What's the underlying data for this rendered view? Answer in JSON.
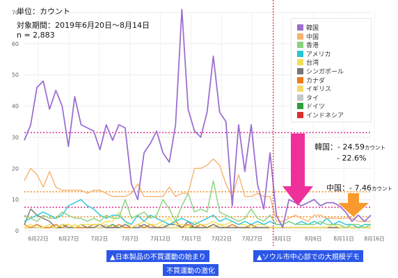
{
  "header": {
    "unit": "単位：カウント",
    "period": "対象期間：2019年6月20日〜8月14日",
    "n": "n = 2,883"
  },
  "colors": {
    "korea": "#9b6fd0",
    "china": "#f7b26e",
    "hongkong": "#86d47a",
    "usa": "#27c4d6",
    "taiwan": "#f2e05a",
    "singapore": "#777777",
    "canada": "#f07a1a",
    "uk": "#f4d96b",
    "thailand": "#c7c7c7",
    "germany": "#2e9e3a",
    "indonesia": "#d9302c",
    "ref_line": "#e0308f",
    "ref_line2": "#f0902a",
    "event_bg": "#2b57e8",
    "arrow_pink": "#f0309a",
    "arrow_orange": "#f99a2c",
    "divider": "#e02020"
  },
  "chart_data": {
    "type": "line",
    "x_labels": [
      "6月22日",
      "6月27日",
      "7月2日",
      "7月7日",
      "7月12日",
      "7月17日",
      "7月22日",
      "7月27日",
      "8月1日",
      "8月6日",
      "8月11日",
      "8月16日"
    ],
    "x_start": "6月20日",
    "ylim": [
      0,
      70
    ],
    "y_ticks": [
      0,
      10,
      20,
      30,
      40,
      50,
      60,
      70
    ],
    "series": [
      {
        "name": "韓国",
        "color_key": "korea",
        "values": [
          29,
          34,
          46,
          48,
          39,
          45,
          40,
          27,
          43,
          34,
          33,
          32,
          26,
          34,
          29,
          34,
          33,
          15,
          10,
          25,
          28,
          32,
          25,
          22,
          34,
          71,
          39,
          32,
          30,
          38,
          56,
          38,
          35,
          8,
          34,
          19,
          34,
          15,
          7,
          25,
          5,
          1,
          10,
          9,
          8,
          9,
          10,
          8,
          9,
          9,
          8,
          6,
          3,
          5,
          3,
          5
        ]
      },
      {
        "name": "中国",
        "color_key": "china",
        "values": [
          16,
          20,
          18,
          14,
          19,
          14,
          13,
          13,
          13,
          13,
          12,
          13,
          13,
          12,
          11,
          11,
          11,
          12,
          15,
          11,
          11,
          11,
          11,
          14,
          11,
          12,
          12,
          20,
          20,
          21,
          23,
          21,
          15,
          11,
          18,
          11,
          11,
          12,
          11,
          11,
          3,
          3,
          4,
          5,
          4,
          3,
          5,
          5,
          4,
          4,
          4,
          4,
          4,
          3,
          3,
          3
        ]
      },
      {
        "name": "香港",
        "color_key": "hongkong",
        "values": [
          5,
          4,
          3,
          5,
          4,
          4,
          6,
          5,
          4,
          4,
          3,
          4,
          3,
          5,
          4,
          4,
          10,
          4,
          5,
          6,
          4,
          5,
          10,
          7,
          3,
          8,
          12,
          6,
          7,
          6,
          16,
          6,
          5,
          4,
          3,
          4,
          7,
          4,
          3,
          5,
          2,
          2,
          3,
          2,
          2,
          2,
          2,
          3,
          2,
          2,
          2,
          1,
          2,
          2,
          1,
          2
        ]
      },
      {
        "name": "アメリカ",
        "color_key": "usa",
        "values": [
          3,
          4,
          5,
          6,
          5,
          4,
          5,
          8,
          9,
          10,
          8,
          7,
          5,
          4,
          5,
          5,
          3,
          2,
          5,
          3,
          5,
          4,
          3,
          2,
          3,
          4,
          3,
          2,
          3,
          4,
          5,
          3,
          4,
          3,
          2,
          3,
          2,
          3,
          2,
          3,
          2,
          2,
          3,
          2,
          3,
          2,
          3,
          2,
          4,
          2,
          3,
          2,
          2,
          1,
          2,
          2
        ]
      },
      {
        "name": "台湾",
        "color_key": "taiwan",
        "values": [
          1,
          2,
          1,
          1,
          2,
          1,
          2,
          2,
          1,
          2,
          2,
          2,
          2,
          3,
          3,
          6,
          3,
          1,
          2,
          3,
          2,
          2,
          3,
          4,
          2,
          2,
          1,
          3,
          2,
          2,
          3,
          2,
          2,
          3,
          2,
          2,
          1,
          2,
          2,
          1,
          1,
          1,
          1,
          1,
          1,
          1,
          1,
          1,
          1,
          2,
          1,
          1,
          1,
          1,
          1,
          1
        ]
      },
      {
        "name": "シンガポール",
        "color_key": "singapore",
        "values": [
          2,
          7,
          5,
          4,
          3,
          1,
          2,
          1,
          1,
          2,
          1,
          1,
          2,
          1,
          1,
          1,
          2,
          1,
          1,
          2,
          1,
          1,
          1,
          2,
          2,
          1,
          3,
          1,
          1,
          1,
          2,
          1,
          1,
          1,
          1,
          1,
          1,
          1,
          1,
          1,
          1,
          1,
          1,
          1,
          1,
          1,
          1,
          1,
          1,
          1,
          1,
          1,
          1,
          1,
          1,
          1
        ]
      },
      {
        "name": "カナダ",
        "color_key": "canada",
        "values": [
          2,
          1,
          2,
          1,
          1,
          2,
          1,
          2,
          1,
          1,
          1,
          2,
          2,
          1,
          1,
          2,
          1,
          1,
          2,
          1,
          2,
          1,
          1,
          2,
          3,
          1,
          2,
          1,
          2,
          1,
          2,
          1,
          1,
          2,
          1,
          1,
          2,
          1,
          1,
          1,
          1,
          1,
          1,
          1,
          1,
          1,
          1,
          1,
          1,
          1,
          1,
          1,
          1,
          1,
          1,
          1
        ]
      },
      {
        "name": "イギリス",
        "color_key": "uk",
        "values": [
          1,
          1,
          2,
          1,
          1,
          1,
          2,
          1,
          2,
          1,
          1,
          1,
          1,
          2,
          1,
          1,
          1,
          1,
          2,
          1,
          1,
          1,
          2,
          1,
          1,
          1,
          1,
          2,
          1,
          1,
          1,
          2,
          1,
          1,
          1,
          1,
          2,
          1,
          1,
          1,
          1,
          1,
          1,
          1,
          1,
          1,
          1,
          1,
          1,
          1,
          1,
          1,
          1,
          1,
          1,
          1
        ]
      },
      {
        "name": "タイ",
        "color_key": "thailand",
        "values": [
          1,
          1,
          1,
          1,
          1,
          2,
          1,
          1,
          1,
          1,
          1,
          1,
          1,
          1,
          1,
          1,
          1,
          1,
          1,
          1,
          1,
          1,
          1,
          1,
          1,
          1,
          1,
          2,
          1,
          1,
          1,
          1,
          1,
          1,
          1,
          1,
          1,
          1,
          1,
          1,
          1,
          1,
          1,
          1,
          1,
          1,
          1,
          1,
          1,
          1,
          1,
          1,
          1,
          1,
          1,
          1
        ]
      },
      {
        "name": "ドイツ",
        "color_key": "germany",
        "values": [
          1,
          1,
          1,
          1,
          1,
          1,
          1,
          1,
          1,
          1,
          1,
          1,
          1,
          1,
          2,
          1,
          1,
          1,
          1,
          1,
          1,
          1,
          1,
          1,
          1,
          1,
          1,
          1,
          1,
          1,
          1,
          1,
          1,
          1,
          1,
          1,
          1,
          1,
          1,
          1,
          1,
          1,
          1,
          1,
          1,
          1,
          1,
          1,
          1,
          1,
          1,
          1,
          1,
          1,
          1,
          1
        ]
      },
      {
        "name": "インドネシア",
        "color_key": "indonesia",
        "values": [
          1,
          1,
          2,
          1,
          1,
          1,
          1,
          1,
          1,
          1,
          1,
          1,
          1,
          2,
          1,
          1,
          1,
          1,
          1,
          1,
          1,
          1,
          1,
          1,
          1,
          1,
          2,
          1,
          1,
          1,
          1,
          1,
          1,
          1,
          1,
          1,
          1,
          1,
          1,
          1,
          1,
          1,
          1,
          1,
          1,
          1,
          1,
          1,
          1,
          1,
          1,
          1,
          1,
          1,
          1,
          1
        ]
      }
    ],
    "reference_lines": [
      {
        "value": 31.5,
        "color_key": "ref_line"
      },
      {
        "value": 12.5,
        "color_key": "ref_line2"
      },
      {
        "value": 7.5,
        "color_key": "ref_line"
      },
      {
        "value": 4.5,
        "color_key": "ref_line2"
      }
    ],
    "divider_index": 40,
    "legend_placement": "top-right",
    "grid": true
  },
  "annotations": {
    "korea_label": "韓国：- 24.59",
    "korea_unit": "カウント",
    "korea_pct": "- 22.6%",
    "china_label": "中国：- 7.46",
    "china_unit": "カウント"
  },
  "events": {
    "boycott_start": "▲日本製品の不買運動の始まり",
    "boycott_intensify": "不買運動の激化",
    "seoul_demo": "▲ソウル市中心部での大規模デモ"
  }
}
